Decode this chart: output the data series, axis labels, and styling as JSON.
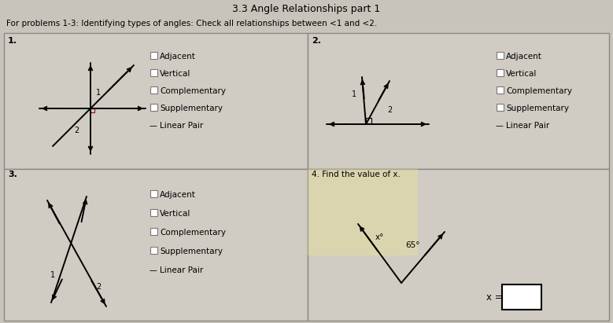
{
  "title": "3.3 Angle Relationships part 1",
  "subtitle": "For problems 1-3: Identifying types of angles: Check all relationships between <1 and <2.",
  "bg_color": "#c8c4bc",
  "cell_bg": "#d4d0c8",
  "problem1_label": "1.",
  "problem2_label": "2.",
  "problem3_label": "3.",
  "problem4_label": "4. Find the value of x.",
  "x_label": "x =",
  "angle_label_x": "x°",
  "angle_label_65": "65°",
  "checkbox_options": [
    "Adjacent",
    "Vertical",
    "Complementary",
    "Supplementary",
    "Linear Pair"
  ]
}
